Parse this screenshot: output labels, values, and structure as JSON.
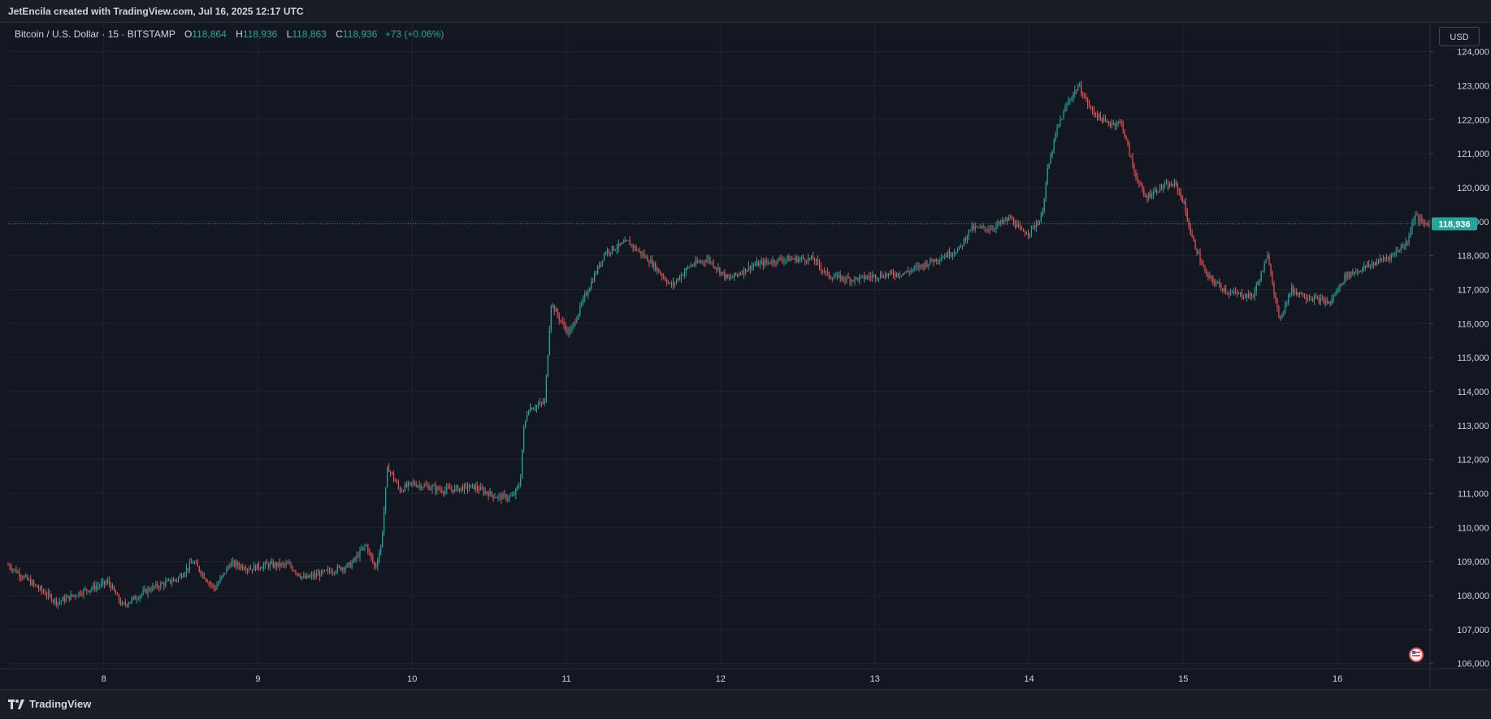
{
  "header": {
    "attribution": "JetEncila created with TradingView.com, Jul 16, 2025 12:17 UTC"
  },
  "legend": {
    "symbol": "Bitcoin / U.S. Dollar · 15 · BITSTAMP",
    "open_label": "O",
    "open": "118,864",
    "high_label": "H",
    "high": "118,936",
    "low_label": "L",
    "low": "118,863",
    "close_label": "C",
    "close": "118,936",
    "change": "+73 (+0.06%)"
  },
  "currency_button": "USD",
  "last_price_label": "118,936",
  "footer": {
    "brand": "TradingView"
  },
  "colors": {
    "up": "#26a69a",
    "down": "#ef5350",
    "background": "#131722",
    "grid": "#1f2330"
  },
  "chart_data": {
    "type": "candlestick",
    "interval": "15",
    "y_ticks": [
      106000,
      107000,
      108000,
      109000,
      110000,
      111000,
      112000,
      113000,
      114000,
      115000,
      116000,
      117000,
      118000,
      119000,
      120000,
      121000,
      122000,
      123000,
      124000
    ],
    "y_tick_labels": [
      "106,000",
      "107,000",
      "108,000",
      "109,000",
      "110,000",
      "111,000",
      "112,000",
      "113,000",
      "114,000",
      "115,000",
      "116,000",
      "117,000",
      "118,000",
      "119,000",
      "120,000",
      "121,000",
      "122,000",
      "123,000",
      "124,000"
    ],
    "x_tick_labels": [
      "8",
      "9",
      "10",
      "11",
      "12",
      "13",
      "14",
      "15",
      "16"
    ],
    "x_range_days": [
      7.38,
      16.6
    ],
    "ylim": [
      105850,
      124850
    ],
    "last_price": 118936,
    "price_path": [
      [
        7.38,
        108900
      ],
      [
        7.55,
        108300
      ],
      [
        7.7,
        107800
      ],
      [
        7.85,
        108100
      ],
      [
        8.03,
        108400
      ],
      [
        8.12,
        107700
      ],
      [
        8.3,
        108200
      ],
      [
        8.48,
        108500
      ],
      [
        8.58,
        109000
      ],
      [
        8.68,
        108400
      ],
      [
        8.72,
        108200
      ],
      [
        8.82,
        108950
      ],
      [
        8.95,
        108800
      ],
      [
        9.05,
        108900
      ],
      [
        9.2,
        108900
      ],
      [
        9.3,
        108500
      ],
      [
        9.45,
        108700
      ],
      [
        9.6,
        108900
      ],
      [
        9.7,
        109500
      ],
      [
        9.76,
        108800
      ],
      [
        9.8,
        109500
      ],
      [
        9.84,
        111800
      ],
      [
        9.92,
        111100
      ],
      [
        10.0,
        111300
      ],
      [
        10.2,
        111100
      ],
      [
        10.4,
        111200
      ],
      [
        10.55,
        110900
      ],
      [
        10.65,
        110900
      ],
      [
        10.7,
        111300
      ],
      [
        10.72,
        112800
      ],
      [
        10.75,
        113500
      ],
      [
        10.82,
        113600
      ],
      [
        10.86,
        113700
      ],
      [
        10.9,
        116600
      ],
      [
        10.96,
        116100
      ],
      [
        11.02,
        115700
      ],
      [
        11.12,
        116800
      ],
      [
        11.25,
        118100
      ],
      [
        11.4,
        118400
      ],
      [
        11.55,
        117800
      ],
      [
        11.68,
        117100
      ],
      [
        11.8,
        117700
      ],
      [
        11.92,
        117900
      ],
      [
        12.05,
        117300
      ],
      [
        12.2,
        117700
      ],
      [
        12.4,
        117900
      ],
      [
        12.6,
        117900
      ],
      [
        12.7,
        117400
      ],
      [
        12.85,
        117300
      ],
      [
        13.0,
        117400
      ],
      [
        13.2,
        117500
      ],
      [
        13.4,
        117900
      ],
      [
        13.55,
        118200
      ],
      [
        13.62,
        118800
      ],
      [
        13.75,
        118800
      ],
      [
        13.88,
        119100
      ],
      [
        13.95,
        118700
      ],
      [
        14.0,
        118700
      ],
      [
        14.08,
        119100
      ],
      [
        14.12,
        120500
      ],
      [
        14.18,
        121700
      ],
      [
        14.25,
        122500
      ],
      [
        14.32,
        123000
      ],
      [
        14.4,
        122300
      ],
      [
        14.5,
        121900
      ],
      [
        14.6,
        121900
      ],
      [
        14.68,
        120500
      ],
      [
        14.75,
        119700
      ],
      [
        14.85,
        120000
      ],
      [
        14.95,
        120100
      ],
      [
        15.0,
        119600
      ],
      [
        15.05,
        118600
      ],
      [
        15.15,
        117400
      ],
      [
        15.3,
        116900
      ],
      [
        15.45,
        116800
      ],
      [
        15.55,
        118000
      ],
      [
        15.62,
        116100
      ],
      [
        15.7,
        117000
      ],
      [
        15.8,
        116800
      ],
      [
        15.88,
        116700
      ],
      [
        15.95,
        116600
      ],
      [
        16.05,
        117400
      ],
      [
        16.2,
        117700
      ],
      [
        16.35,
        118000
      ],
      [
        16.45,
        118400
      ],
      [
        16.5,
        119200
      ],
      [
        16.55,
        118950
      ],
      [
        16.6,
        118936
      ]
    ]
  }
}
